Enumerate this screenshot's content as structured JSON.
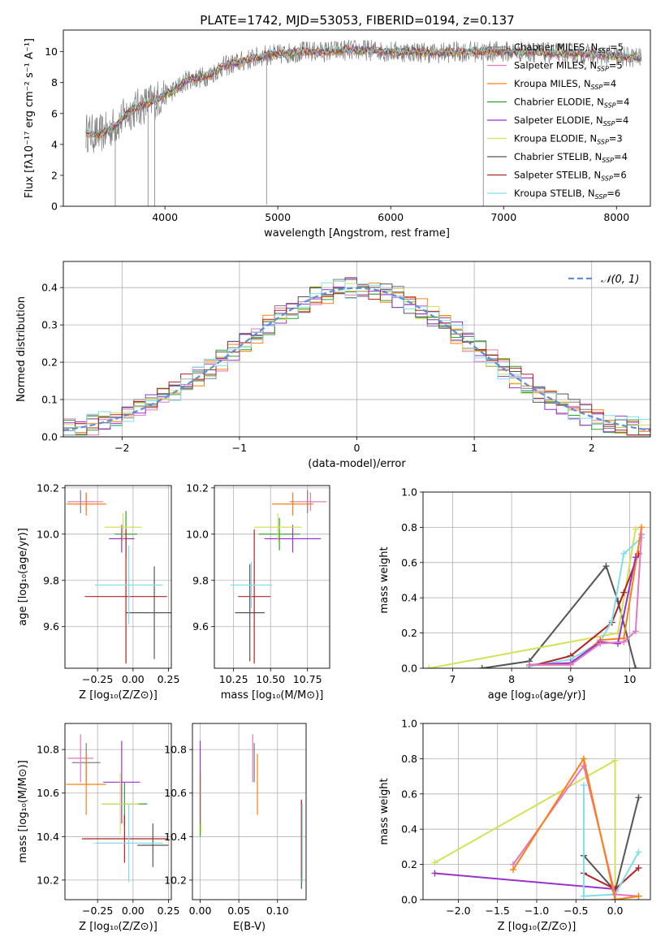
{
  "figure_title": "PLATE=1742, MJD=53053, FIBERID=0194, z=0.137",
  "colors": {
    "Chabrier MILES": "#808080",
    "Salpeter MILES": "#e377c2",
    "Kroupa MILES": "#ff7f0e",
    "Chabrier ELODIE": "#2ca02c",
    "Salpeter ELODIE": "#9932cc",
    "Kroupa ELODIE": "#d4e157",
    "Chabrier STELIB": "#555555",
    "Salpeter STELIB": "#b22222",
    "Kroupa STELIB": "#80deea",
    "gauss": "#5b8fd6"
  },
  "chart_data": [
    {
      "id": "spectrum",
      "type": "line",
      "xlabel": "wavelength [Angstrom, rest frame]",
      "ylabel": "Flux [fλ10⁻¹⁷ erg cm⁻² s⁻¹ A⁻¹]",
      "xlim": [
        3100,
        8300
      ],
      "ylim": [
        0,
        11.4
      ],
      "xticks": [
        4000,
        5000,
        6000,
        7000,
        8000
      ],
      "yticks": [
        0,
        2,
        4,
        6,
        8,
        10
      ],
      "legend_position": "top-right",
      "observed": {
        "x": [
          3300,
          3400,
          3500,
          3600,
          3700,
          3800,
          3900,
          4000,
          4100,
          4200,
          4300,
          4400,
          4500,
          4600,
          4700,
          4800,
          4900,
          5000,
          5200,
          5400,
          5600,
          5800,
          6000,
          6200,
          6400,
          6600,
          6800,
          7000,
          7200,
          7400,
          7600,
          7800,
          8000,
          8200
        ],
        "y": [
          4.8,
          4.6,
          4.9,
          5.5,
          6.2,
          6.5,
          6.8,
          7.2,
          7.6,
          8.2,
          8.3,
          8.5,
          9.0,
          9.2,
          9.4,
          9.6,
          9.8,
          9.8,
          10.0,
          10.0,
          10.1,
          10.1,
          10.0,
          10.0,
          9.9,
          10.0,
          10.0,
          10.0,
          10.0,
          9.9,
          9.9,
          9.8,
          9.7,
          9.6
        ]
      },
      "series": [
        {
          "name": "Chabrier MILES, N_SSP=5"
        },
        {
          "name": "Salpeter MILES, N_SSP=5"
        },
        {
          "name": "Kroupa MILES, N_SSP=4"
        },
        {
          "name": "Chabrier ELODIE, N_SSP=4"
        },
        {
          "name": "Salpeter ELODIE, N_SSP=4"
        },
        {
          "name": "Kroupa ELODIE, N_SSP=3"
        },
        {
          "name": "Chabrier STELIB, N_SSP=4"
        },
        {
          "name": "Salpeter STELIB, N_SSP=6"
        },
        {
          "name": "Kroupa STELIB, N_SSP=6"
        }
      ]
    },
    {
      "id": "residuals",
      "type": "line",
      "xlabel": "(data-model)/error",
      "ylabel": "Normed distribution",
      "xlim": [
        -2.5,
        2.5
      ],
      "ylim": [
        0,
        0.47
      ],
      "xticks": [
        -2,
        -1,
        0,
        1,
        2
      ],
      "yticks": [
        0.0,
        0.1,
        0.2,
        0.3,
        0.4
      ],
      "grid": true,
      "legend_position": "top-right",
      "legend": "𝒩(0, 1)",
      "bin_width": 0.1
    },
    {
      "id": "age_vs_Z",
      "type": "scatter",
      "xlabel": "Z [log₁₀(Z/Z⊙)]",
      "ylabel": "age  [log₁₀(age/yr)]",
      "xlim": [
        -0.48,
        0.27
      ],
      "ylim": [
        9.42,
        10.21
      ],
      "xticks": [
        -0.25,
        0.0,
        0.25
      ],
      "yticks": [
        9.6,
        9.8,
        10.0,
        10.2
      ],
      "grid": true,
      "points": [
        {
          "model": "Chabrier MILES",
          "x": -0.37,
          "y": 10.14,
          "xerr": 0.09,
          "yerr": 0.05
        },
        {
          "model": "Salpeter MILES",
          "x": -0.33,
          "y": 10.14,
          "xerr": 0.12,
          "yerr": 0.04
        },
        {
          "model": "Kroupa MILES",
          "x": -0.33,
          "y": 10.13,
          "xerr": 0.14,
          "yerr": 0.05
        },
        {
          "model": "Chabrier ELODIE",
          "x": -0.05,
          "y": 10.0,
          "xerr": 0.08,
          "yerr": 0.1
        },
        {
          "model": "Salpeter ELODIE",
          "x": -0.08,
          "y": 9.98,
          "xerr": 0.09,
          "yerr": 0.06
        },
        {
          "model": "Kroupa ELODIE",
          "x": -0.07,
          "y": 10.03,
          "xerr": 0.13,
          "yerr": 0.06
        },
        {
          "model": "Chabrier STELIB",
          "x": 0.15,
          "y": 9.66,
          "xerr": 0.2,
          "yerr": 0.2
        },
        {
          "model": "Salpeter STELIB",
          "x": -0.05,
          "y": 9.73,
          "xerr": 0.29,
          "yerr": 0.29
        },
        {
          "model": "Kroupa STELIB",
          "x": -0.03,
          "y": 9.78,
          "xerr": 0.24,
          "yerr": 0.17
        }
      ]
    },
    {
      "id": "age_vs_mass",
      "type": "scatter",
      "xlabel": "mass [log₁₀(M/M⊙)]",
      "ylabel": "",
      "xlim": [
        10.12,
        10.9
      ],
      "ylim": [
        9.42,
        10.21
      ],
      "xticks": [
        10.25,
        10.5,
        10.75
      ],
      "yticks": [
        9.6,
        9.8,
        10.0,
        10.2
      ],
      "grid": true,
      "points": [
        {
          "model": "Chabrier MILES",
          "x": 10.75,
          "y": 10.14,
          "xerr": 0.12,
          "yerr": 0.05
        },
        {
          "model": "Salpeter MILES",
          "x": 10.77,
          "y": 10.14,
          "xerr": 0.11,
          "yerr": 0.04
        },
        {
          "model": "Kroupa MILES",
          "x": 10.65,
          "y": 10.13,
          "xerr": 0.14,
          "yerr": 0.05
        },
        {
          "model": "Chabrier ELODIE",
          "x": 10.56,
          "y": 10.0,
          "xerr": 0.14,
          "yerr": 0.07
        },
        {
          "model": "Salpeter ELODIE",
          "x": 10.65,
          "y": 9.98,
          "xerr": 0.19,
          "yerr": 0.06
        },
        {
          "model": "Kroupa ELODIE",
          "x": 10.55,
          "y": 10.03,
          "xerr": 0.16,
          "yerr": 0.06
        },
        {
          "model": "Chabrier STELIB",
          "x": 10.36,
          "y": 9.66,
          "xerr": 0.1,
          "yerr": 0.21
        },
        {
          "model": "Salpeter STELIB",
          "x": 10.39,
          "y": 9.73,
          "xerr": 0.11,
          "yerr": 0.29
        },
        {
          "model": "Kroupa STELIB",
          "x": 10.37,
          "y": 9.78,
          "xerr": 0.14,
          "yerr": 0.1
        }
      ]
    },
    {
      "id": "mw_vs_age",
      "type": "line",
      "xlabel": "age  [log₁₀(age/yr)]",
      "ylabel": "mass weight",
      "xlim": [
        6.5,
        10.35
      ],
      "ylim": [
        0,
        1.0
      ],
      "xticks": [
        7,
        8,
        9,
        10
      ],
      "yticks": [
        0.0,
        0.2,
        0.4,
        0.6,
        0.8,
        1.0
      ],
      "grid": true,
      "series": [
        {
          "model": "Chabrier STELIB",
          "x": [
            7.5,
            8.3,
            9.6,
            9.8,
            10.1
          ],
          "y": [
            0.0,
            0.04,
            0.58,
            0.38,
            0.0
          ]
        },
        {
          "model": "Kroupa ELODIE",
          "x": [
            6.6,
            9.8,
            10.1
          ],
          "y": [
            0.0,
            0.2,
            0.79
          ]
        },
        {
          "model": "Salpeter STELIB",
          "x": [
            8.3,
            9.0,
            9.7,
            9.9,
            10.15
          ],
          "y": [
            0.01,
            0.07,
            0.26,
            0.43,
            0.65
          ]
        },
        {
          "model": "Kroupa STELIB",
          "x": [
            8.3,
            9.0,
            9.5,
            9.7,
            9.9,
            10.2
          ],
          "y": [
            0.01,
            0.05,
            0.15,
            0.27,
            0.65,
            0.74
          ]
        },
        {
          "model": "Kroupa MILES",
          "x": [
            8.3,
            9.0,
            9.5,
            9.9,
            10.2
          ],
          "y": [
            0.02,
            0.02,
            0.16,
            0.17,
            0.8
          ]
        },
        {
          "model": "Salpeter ELODIE",
          "x": [
            8.3,
            9.0,
            9.5,
            9.8,
            10.1
          ],
          "y": [
            0.02,
            0.03,
            0.15,
            0.14,
            0.63
          ]
        },
        {
          "model": "Salpeter MILES",
          "x": [
            8.3,
            9.0,
            9.5,
            9.9,
            10.1,
            10.2
          ],
          "y": [
            0.02,
            0.02,
            0.14,
            0.15,
            0.21,
            0.76
          ]
        }
      ]
    },
    {
      "id": "mass_vs_Z",
      "type": "scatter",
      "xlabel": "Z [log₁₀(Z/Z⊙)]",
      "ylabel": "mass [log₁₀(M/M⊙)]",
      "xlim": [
        -0.48,
        0.27
      ],
      "ylim": [
        10.11,
        10.92
      ],
      "xticks": [
        -0.25,
        0.0,
        0.25
      ],
      "yticks": [
        10.2,
        10.4,
        10.6,
        10.8
      ],
      "grid": true,
      "points": [
        {
          "model": "Chabrier MILES",
          "x": -0.33,
          "y": 10.74,
          "xerr": 0.1,
          "yerr": 0.09
        },
        {
          "model": "Salpeter MILES",
          "x": -0.37,
          "y": 10.76,
          "xerr": 0.09,
          "yerr": 0.11
        },
        {
          "model": "Kroupa MILES",
          "x": -0.33,
          "y": 10.64,
          "xerr": 0.14,
          "yerr": 0.14
        },
        {
          "model": "Chabrier ELODIE",
          "x": -0.06,
          "y": 10.55,
          "xerr": 0.16,
          "yerr": 0.1
        },
        {
          "model": "Salpeter ELODIE",
          "x": -0.08,
          "y": 10.65,
          "xerr": 0.13,
          "yerr": 0.19
        },
        {
          "model": "Kroupa ELODIE",
          "x": -0.09,
          "y": 10.55,
          "xerr": 0.13,
          "yerr": 0.14
        },
        {
          "model": "Chabrier STELIB",
          "x": 0.14,
          "y": 10.36,
          "xerr": 0.11,
          "yerr": 0.1
        },
        {
          "model": "Salpeter STELIB",
          "x": -0.06,
          "y": 10.39,
          "xerr": 0.3,
          "yerr": 0.11
        },
        {
          "model": "Kroupa STELIB",
          "x": -0.03,
          "y": 10.37,
          "xerr": 0.24,
          "yerr": 0.18
        }
      ]
    },
    {
      "id": "mass_vs_ebv",
      "type": "scatter",
      "xlabel": "E(B-V)",
      "ylabel": "",
      "xlim": [
        -0.01,
        0.137
      ],
      "ylim": [
        10.11,
        10.92
      ],
      "xticks": [
        0.0,
        0.05,
        0.1
      ],
      "yticks": [
        10.2,
        10.4,
        10.6,
        10.8
      ],
      "grid": true,
      "points": [
        {
          "model": "Chabrier MILES",
          "x": 0.07,
          "y": 10.74,
          "yerr": 0.09
        },
        {
          "model": "Salpeter MILES",
          "x": 0.068,
          "y": 10.76,
          "yerr": 0.11
        },
        {
          "model": "Kroupa MILES",
          "x": 0.074,
          "y": 10.64,
          "yerr": 0.14
        },
        {
          "model": "Chabrier ELODIE",
          "x": 0.0,
          "y": 10.55,
          "yerr": 0.15
        },
        {
          "model": "Salpeter ELODIE",
          "x": 0.0,
          "y": 10.65,
          "yerr": 0.19
        },
        {
          "model": "Kroupa ELODIE",
          "x": 0.001,
          "y": 10.55,
          "yerr": 0.14
        },
        {
          "model": "Chabrier STELIB",
          "x": 0.131,
          "y": 10.36,
          "yerr": 0.2
        },
        {
          "model": "Salpeter STELIB",
          "x": 0.131,
          "y": 10.39,
          "yerr": 0.18
        },
        {
          "model": "Kroupa STELIB",
          "x": 0.132,
          "y": 10.37,
          "yerr": 0.18
        }
      ]
    },
    {
      "id": "mw_vs_Z",
      "type": "line",
      "xlabel": "Z [log₁₀(Z/Z⊙)]",
      "ylabel": "mass weight",
      "xlim": [
        -2.45,
        0.45
      ],
      "ylim": [
        0,
        1.0
      ],
      "xticks": [
        -2.0,
        -1.5,
        -1.0,
        -0.5,
        0.0
      ],
      "yticks": [
        0.0,
        0.2,
        0.4,
        0.6,
        0.8,
        1.0
      ],
      "grid": true,
      "series": [
        {
          "model": "Kroupa ELODIE",
          "x": [
            -2.3,
            0.0,
            0.0
          ],
          "y": [
            0.21,
            0.79,
            0.0
          ]
        },
        {
          "model": "Salpeter ELODIE",
          "x": [
            -2.3,
            0.0,
            0.0
          ],
          "y": [
            0.15,
            0.06,
            0.0
          ]
        },
        {
          "model": "Chabrier STELIB",
          "x": [
            -0.4,
            0.0,
            0.3
          ],
          "y": [
            0.25,
            0.05,
            0.58
          ]
        },
        {
          "model": "Salpeter STELIB",
          "x": [
            -0.4,
            0.0,
            0.3
          ],
          "y": [
            0.15,
            0.06,
            0.18
          ]
        },
        {
          "model": "Kroupa STELIB",
          "x": [
            -0.4,
            -0.4,
            0.0,
            0.3
          ],
          "y": [
            0.65,
            0.02,
            0.03,
            0.27
          ]
        },
        {
          "model": "Salpeter MILES",
          "x": [
            -1.3,
            -0.4,
            0.0,
            0.3
          ],
          "y": [
            0.2,
            0.76,
            0.03,
            0.02
          ]
        },
        {
          "model": "Kroupa MILES",
          "x": [
            -1.3,
            -0.4,
            0.0,
            0.3
          ],
          "y": [
            0.17,
            0.8,
            0.0,
            0.02
          ]
        }
      ]
    }
  ]
}
